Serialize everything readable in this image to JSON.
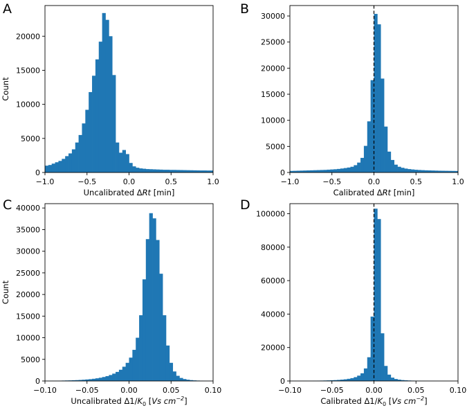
{
  "figure": {
    "panel_letters": [
      "A",
      "B",
      "C",
      "D"
    ]
  },
  "chart_data": [
    {
      "panel": "A",
      "type": "bar",
      "title": "",
      "xlabel": "Uncalibrated ΔRt [min]",
      "xlabel_parts": {
        "prefix": "Uncalibrated Δ",
        "var": "Rt",
        "suffix": " [min]"
      },
      "ylabel": "Count",
      "xlim": [
        -1.0,
        1.0
      ],
      "ylim": [
        0,
        24500
      ],
      "xticks": [
        -1.0,
        -0.5,
        0.0,
        0.5,
        1.0
      ],
      "xtick_labels": [
        "−1.0",
        "−0.5",
        "0.0",
        "0.5",
        "1.0"
      ],
      "yticks": [
        0,
        5000,
        10000,
        15000,
        20000
      ],
      "ytick_labels": [
        "0",
        "5000",
        "10000",
        "15000",
        "20000"
      ],
      "bin_start": -1.0,
      "bin_width": 0.04,
      "values": [
        1000,
        1100,
        1300,
        1500,
        1700,
        2000,
        2400,
        2800,
        3400,
        4400,
        5500,
        7200,
        9200,
        11800,
        14200,
        16600,
        19200,
        23400,
        22400,
        20000,
        14300,
        4400,
        2900,
        3300,
        2700,
        1400,
        900,
        700,
        600,
        550,
        500,
        480,
        460,
        440,
        420,
        400,
        400,
        380,
        380,
        370,
        360,
        350,
        340,
        330,
        320,
        310,
        300,
        300,
        290,
        290
      ],
      "color": "#1f77b4",
      "ref_line": null
    },
    {
      "panel": "B",
      "type": "bar",
      "title": "",
      "xlabel": "Calibrated ΔRt [min]",
      "xlabel_parts": {
        "prefix": "Calibrated Δ",
        "var": "Rt",
        "suffix": " [min]"
      },
      "ylabel": "",
      "xlim": [
        -1.0,
        1.0
      ],
      "ylim": [
        0,
        32000
      ],
      "xticks": [
        -1.0,
        -0.5,
        0.0,
        0.5,
        1.0
      ],
      "xtick_labels": [
        "−1.0",
        "−0.5",
        "0.0",
        "0.5",
        "1.0"
      ],
      "yticks": [
        0,
        5000,
        10000,
        15000,
        20000,
        25000,
        30000
      ],
      "ytick_labels": [
        "0",
        "5000",
        "10000",
        "15000",
        "20000",
        "25000",
        "30000"
      ],
      "bin_start": -1.0,
      "bin_width": 0.04,
      "values": [
        300,
        320,
        340,
        360,
        380,
        400,
        420,
        440,
        460,
        480,
        500,
        540,
        580,
        620,
        680,
        760,
        850,
        950,
        1100,
        1400,
        1900,
        2800,
        5100,
        9800,
        17700,
        30400,
        28400,
        18000,
        8800,
        4000,
        2400,
        1500,
        1100,
        900,
        750,
        650,
        580,
        520,
        480,
        450,
        420,
        400,
        380,
        360,
        340,
        330,
        320,
        310,
        300,
        290
      ],
      "color": "#1f77b4",
      "ref_line": 0.0
    },
    {
      "panel": "C",
      "type": "bar",
      "title": "",
      "xlabel": "Uncalibrated Δ1/K0 [Vs cm−2]",
      "xlabel_parts": {
        "prefix": "Uncalibrated Δ1/",
        "var": "K",
        "sub": "0",
        "mid": " [",
        "unit": "Vs cm",
        "sup": "−2",
        "suffix": "]"
      },
      "ylabel": "Count",
      "xlim": [
        -0.1,
        0.1
      ],
      "ylim": [
        0,
        41000
      ],
      "xticks": [
        -0.1,
        -0.05,
        0.0,
        0.05,
        0.1
      ],
      "xtick_labels": [
        "−0.10",
        "−0.05",
        "0.00",
        "0.05",
        "0.10"
      ],
      "yticks": [
        0,
        5000,
        10000,
        15000,
        20000,
        25000,
        30000,
        35000,
        40000
      ],
      "ytick_labels": [
        "0",
        "5000",
        "10000",
        "15000",
        "20000",
        "25000",
        "30000",
        "35000",
        "40000"
      ],
      "bin_start": -0.1,
      "bin_width": 0.004,
      "values": [
        40,
        50,
        60,
        70,
        80,
        100,
        120,
        140,
        170,
        200,
        240,
        290,
        350,
        420,
        510,
        620,
        750,
        920,
        1120,
        1380,
        1700,
        2100,
        2600,
        3300,
        4200,
        5400,
        7200,
        10000,
        15200,
        23500,
        32800,
        38800,
        37600,
        32600,
        24800,
        15200,
        8200,
        4200,
        2200,
        1200,
        700,
        450,
        300,
        200,
        140,
        100,
        70,
        50,
        40,
        30
      ],
      "color": "#1f77b4",
      "ref_line": null
    },
    {
      "panel": "D",
      "type": "bar",
      "title": "",
      "xlabel": "Calibrated Δ1/K0 [Vs cm−2]",
      "xlabel_parts": {
        "prefix": "Calibrated Δ1/",
        "var": "K",
        "sub": "0",
        "mid": " [",
        "unit": "Vs cm",
        "sup": "−2",
        "suffix": "]"
      },
      "ylabel": "",
      "xlim": [
        -0.1,
        0.1
      ],
      "ylim": [
        0,
        106000
      ],
      "xticks": [
        -0.1,
        -0.05,
        0.0,
        0.05,
        0.1
      ],
      "xtick_labels": [
        "−0.10",
        "−0.05",
        "0.00",
        "0.05",
        "0.10"
      ],
      "yticks": [
        0,
        20000,
        40000,
        60000,
        80000,
        100000
      ],
      "ytick_labels": [
        "0",
        "20000",
        "40000",
        "60000",
        "80000",
        "100000"
      ],
      "bin_start": -0.1,
      "bin_width": 0.004,
      "values": [
        60,
        70,
        80,
        90,
        110,
        130,
        150,
        180,
        210,
        250,
        300,
        360,
        430,
        520,
        640,
        800,
        1000,
        1300,
        1700,
        2300,
        3200,
        4600,
        7500,
        14200,
        38500,
        103000,
        96800,
        28500,
        9000,
        3800,
        2000,
        1200,
        800,
        550,
        400,
        300,
        230,
        180,
        140,
        110,
        90,
        70,
        60,
        50,
        40,
        35,
        30,
        25,
        20,
        20
      ],
      "color": "#1f77b4",
      "ref_line": 0.0
    }
  ]
}
